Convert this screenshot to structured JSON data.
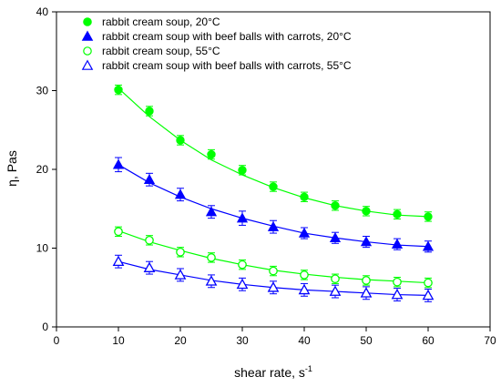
{
  "chart_data": {
    "type": "scatter",
    "title": "",
    "xlabel": "shear rate, s",
    "xlabel_sup": "-1",
    "ylabel": "η, Pas",
    "xlim": [
      0,
      70
    ],
    "ylim": [
      0,
      40
    ],
    "x_ticks": [
      0,
      10,
      20,
      30,
      40,
      50,
      60,
      70
    ],
    "y_ticks": [
      0,
      10,
      20,
      30,
      40
    ],
    "grid": false,
    "legend_position": "top-left",
    "x": [
      10,
      15,
      20,
      25,
      30,
      35,
      40,
      45,
      50,
      55,
      60
    ],
    "series": [
      {
        "name": "rabbit cream soup, 20°C",
        "marker": "filled-circle",
        "color": "#00ff00",
        "values": [
          30.1,
          27.4,
          23.7,
          21.9,
          19.9,
          17.8,
          16.5,
          15.4,
          14.7,
          14.3,
          14.0
        ],
        "error": [
          0.6,
          0.6,
          0.6,
          0.6,
          0.6,
          0.6,
          0.6,
          0.6,
          0.6,
          0.6,
          0.6
        ],
        "fit": [
          30.3,
          26.7,
          23.7,
          21.2,
          19.3,
          17.7,
          16.4,
          15.4,
          14.7,
          14.2,
          14.0
        ]
      },
      {
        "name": "rabbit cream soup with beef balls with carrots, 20°C",
        "marker": "filled-triangle",
        "color": "#0000ff",
        "values": [
          20.6,
          18.7,
          16.8,
          14.6,
          13.8,
          12.7,
          11.9,
          11.3,
          10.8,
          10.5,
          10.2
        ],
        "error": [
          0.9,
          0.8,
          0.8,
          0.8,
          0.9,
          0.8,
          0.7,
          0.7,
          0.7,
          0.7,
          0.7
        ],
        "fit": [
          20.6,
          18.3,
          16.5,
          15.0,
          13.8,
          12.8,
          11.9,
          11.3,
          10.8,
          10.4,
          10.2
        ]
      },
      {
        "name": "rabbit cream soup, 55°C",
        "marker": "open-circle",
        "color": "#00ff00",
        "values": [
          12.1,
          11.0,
          9.5,
          8.8,
          7.9,
          7.1,
          6.6,
          6.1,
          5.9,
          5.7,
          5.6
        ],
        "error": [
          0.6,
          0.6,
          0.6,
          0.6,
          0.6,
          0.6,
          0.6,
          0.6,
          0.6,
          0.6,
          0.6
        ],
        "fit": [
          12.2,
          10.8,
          9.7,
          8.7,
          7.9,
          7.2,
          6.7,
          6.3,
          6.0,
          5.8,
          5.6
        ]
      },
      {
        "name": "rabbit cream soup with beef balls with carrots, 55°C",
        "marker": "open-triangle",
        "color": "#0000ff",
        "values": [
          8.3,
          7.5,
          6.6,
          5.8,
          5.4,
          5.0,
          4.7,
          4.5,
          4.3,
          4.1,
          4.0
        ],
        "error": [
          0.8,
          0.8,
          0.8,
          0.8,
          0.8,
          0.8,
          0.8,
          0.8,
          0.8,
          0.8,
          0.8
        ],
        "fit": [
          8.3,
          7.3,
          6.6,
          5.9,
          5.4,
          5.0,
          4.7,
          4.5,
          4.3,
          4.1,
          4.0
        ]
      }
    ]
  }
}
